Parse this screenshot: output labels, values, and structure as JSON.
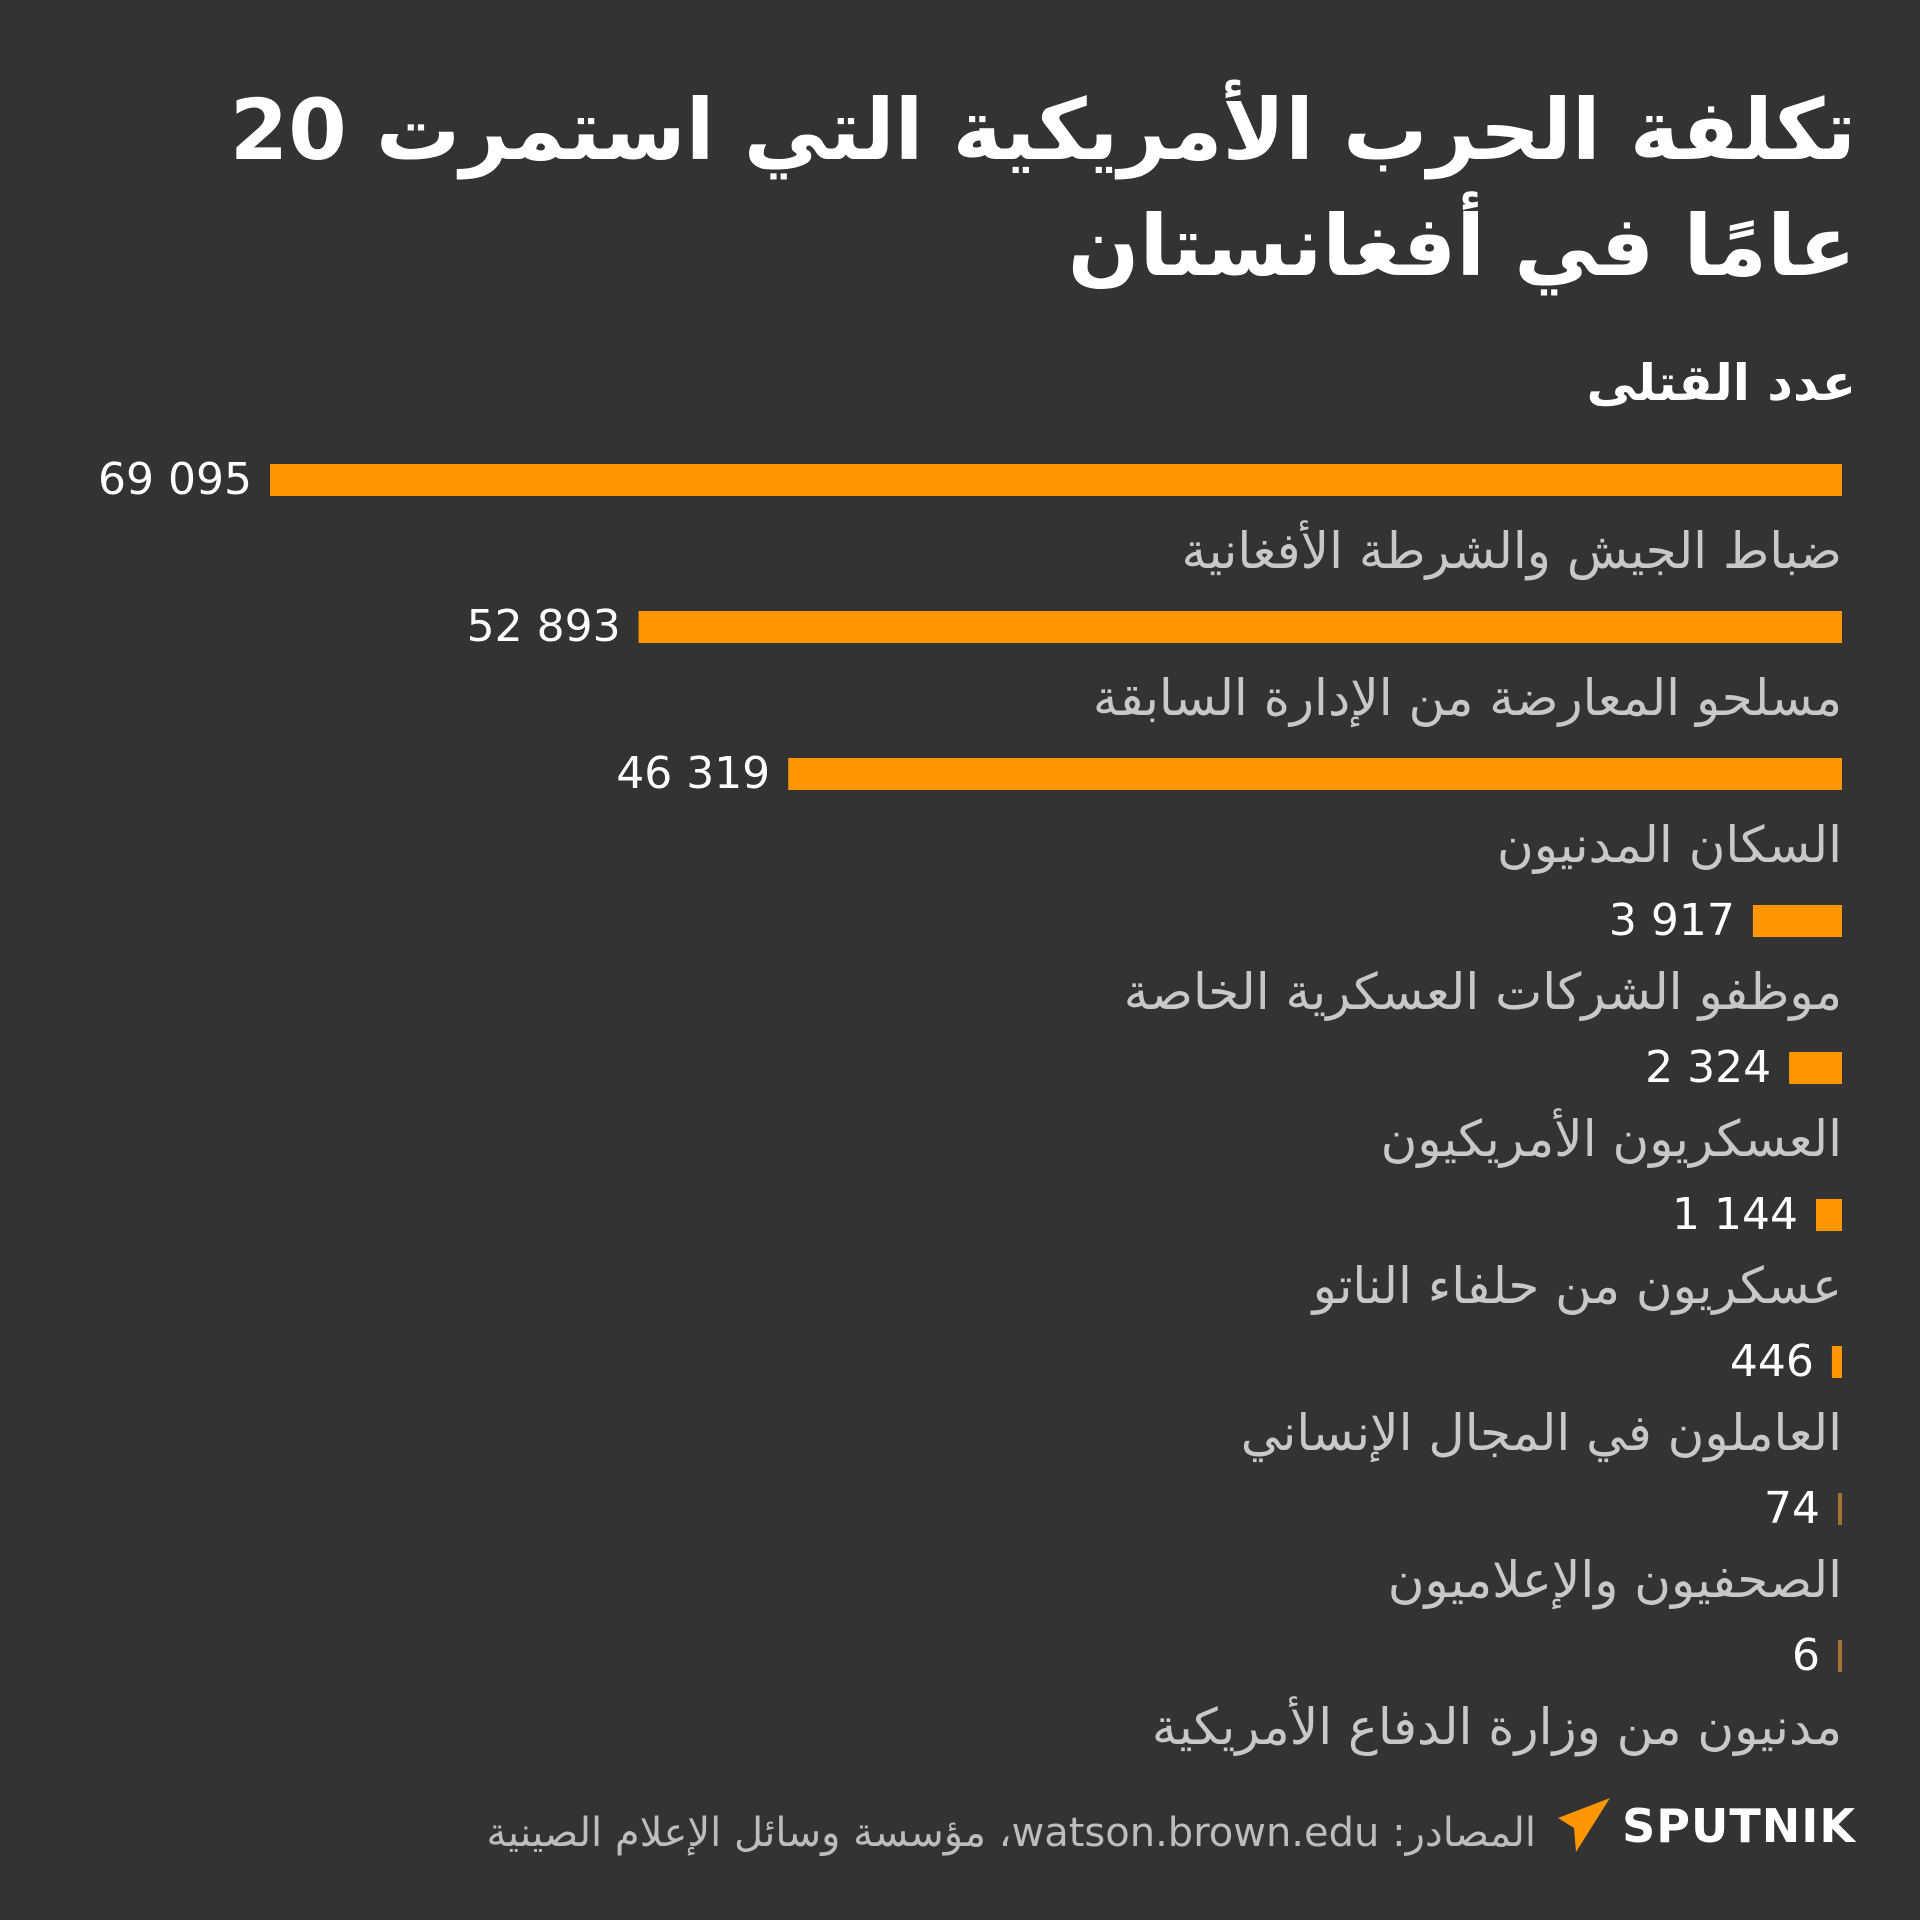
{
  "title": "تكلفة الحرب الأمريكية التي استمرت 20 عامًا في أفغانستان",
  "subtitle": "عدد القتلى",
  "footer": {
    "source": "المصادر: watson.brown.edu، مؤسسة وسائل الإعلام الصينية",
    "brand": "SPUTNIK"
  },
  "colors": {
    "background": "#333333",
    "bar": "#ff9600",
    "bar_small": "#a8732a",
    "value_text": "#ffffff",
    "label_text": "#c8c8c8"
  },
  "chart_data": {
    "type": "bar",
    "orientation": "horizontal",
    "title": "تكلفة الحرب الأمريكية التي استمرت 20 عامًا في أفغانستان",
    "subtitle": "عدد القتلى",
    "categories": [
      "ضباط الجيش والشرطة الأفغانية",
      "مسلحو المعارضة من الإدارة السابقة",
      "السكان المدنيون",
      "موظفو الشركات العسكرية الخاصة",
      "العسكريون الأمريكيون",
      "عسكريون من حلفاء الناتو",
      "العاملون في المجال الإنساني",
      "الصحفيون والإعلاميون",
      "مدنيون من وزارة الدفاع الأمريكية"
    ],
    "values": [
      69095,
      52893,
      46319,
      3917,
      2324,
      1144,
      446,
      74,
      6
    ],
    "value_labels": [
      "69 095",
      "52 893",
      "46 319",
      "3 917",
      "2 324",
      "1 144",
      "446",
      "74",
      "6"
    ],
    "xlim": [
      0,
      69095
    ],
    "grid": false,
    "legend": "none"
  }
}
